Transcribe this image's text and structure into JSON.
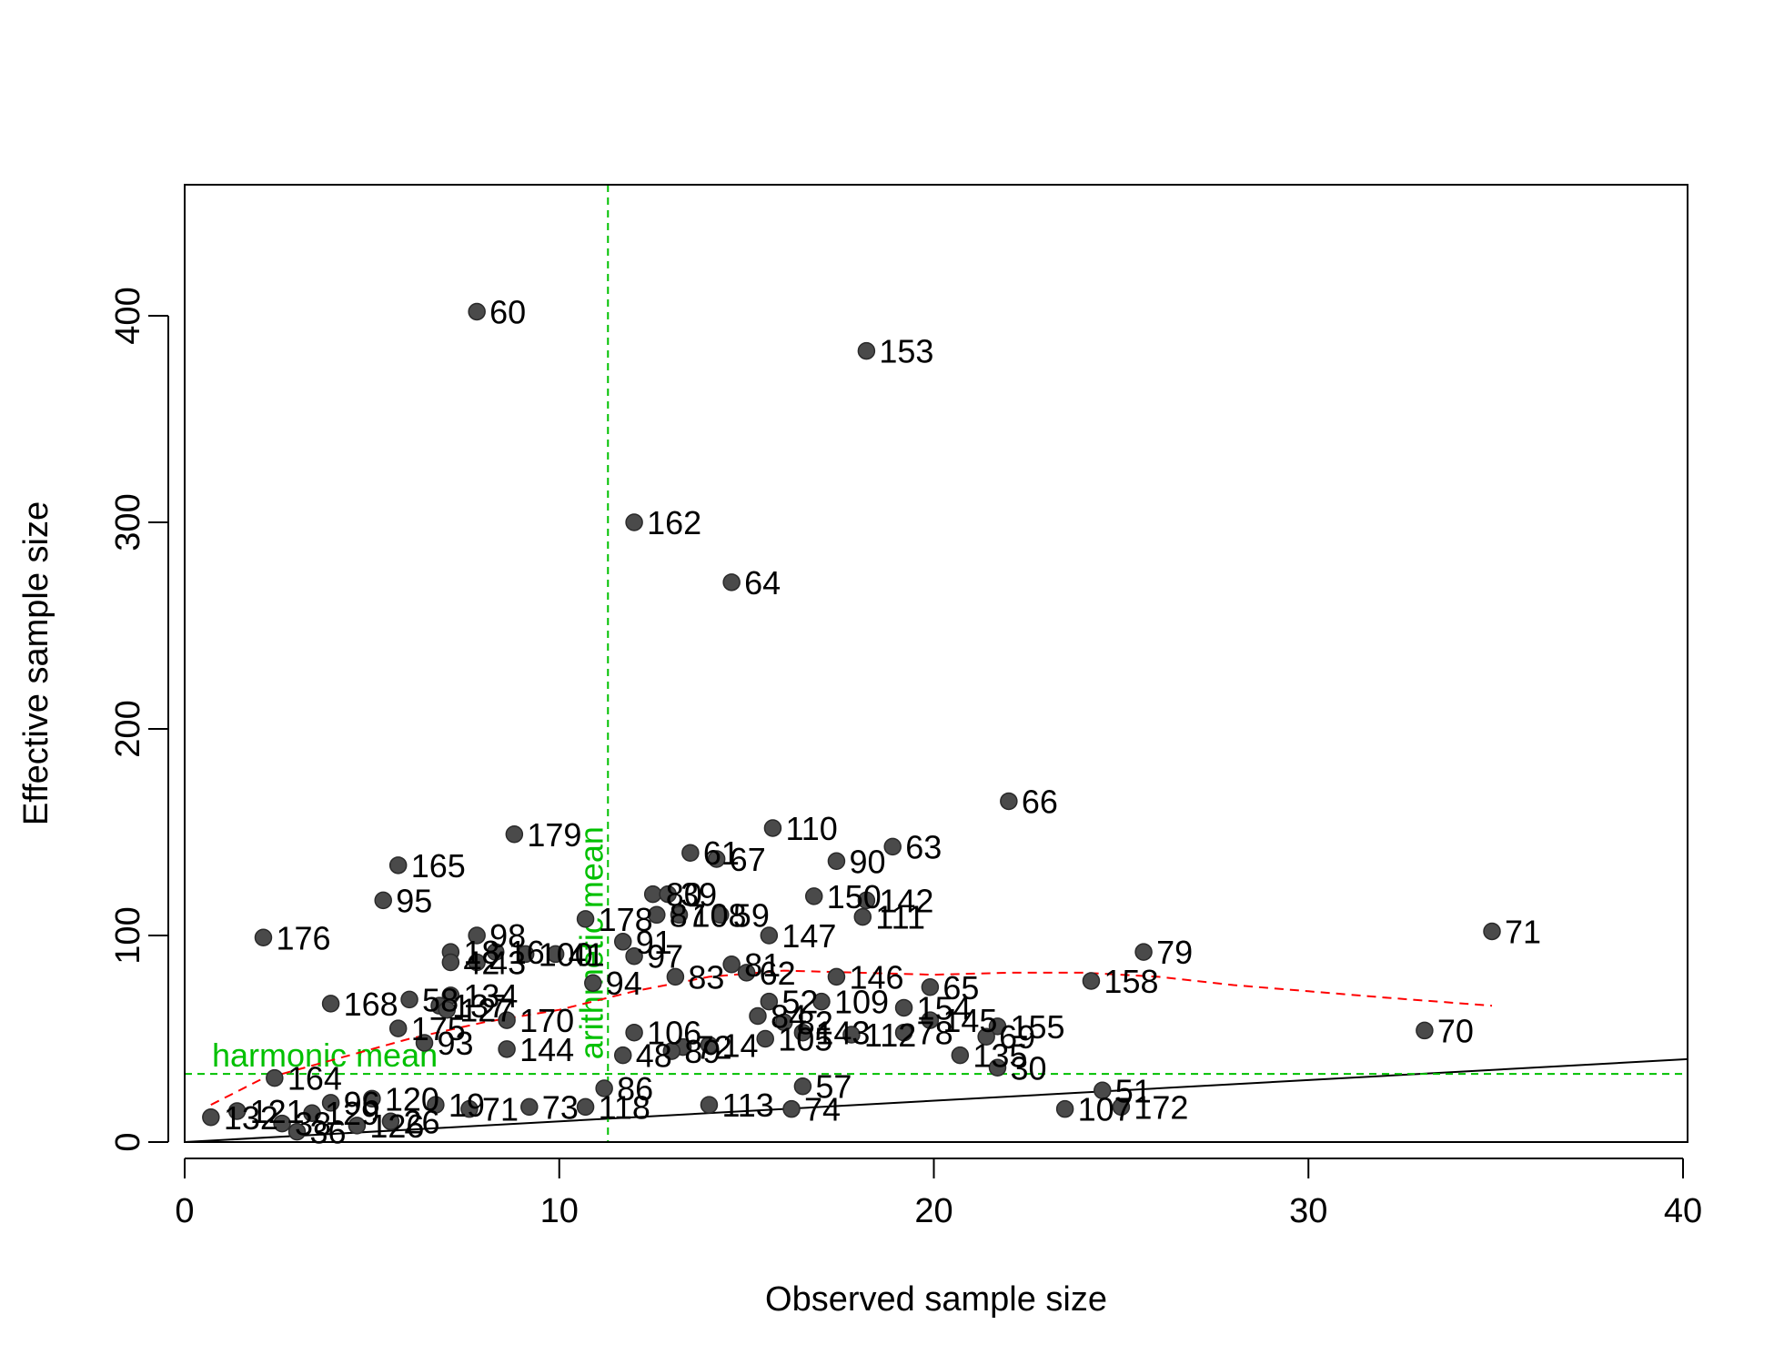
{
  "chart_data": {
    "type": "scatter",
    "xlabel": "Observed sample size",
    "ylabel": "Effective sample size",
    "xlim": [
      0,
      40
    ],
    "ylim": [
      0,
      460
    ],
    "x_ticks": [
      0,
      10,
      20,
      30,
      40
    ],
    "y_ticks": [
      0,
      100,
      200,
      300,
      400
    ],
    "grid": false,
    "legend": "none",
    "colors": {
      "points": "#4a4a4a",
      "trend": "#ff0000",
      "reference": "#00c000",
      "identity": "#000000"
    },
    "reference_lines": {
      "harmonic_mean": {
        "label": "harmonic mean",
        "y": 33
      },
      "arithmetic_mean": {
        "label": "arithmetic mean",
        "x": 11.3
      }
    },
    "identity_line": {
      "slope": 1
    },
    "trend_line": {
      "style": "dashed",
      "x": [
        0.7,
        2,
        4,
        6,
        8,
        10,
        12,
        14,
        16,
        18,
        20,
        22,
        24,
        26,
        28,
        30,
        32,
        34.9
      ],
      "y": [
        18,
        30,
        40,
        50,
        58,
        64,
        73,
        80,
        83,
        82,
        81,
        82,
        82,
        80,
        76,
        73,
        70,
        66
      ]
    },
    "points": [
      {
        "id": "60",
        "x": 7.8,
        "y": 402
      },
      {
        "id": "153",
        "x": 18.2,
        "y": 383
      },
      {
        "id": "162",
        "x": 12.0,
        "y": 300
      },
      {
        "id": "64",
        "x": 14.6,
        "y": 271
      },
      {
        "id": "66",
        "x": 22.0,
        "y": 165
      },
      {
        "id": "179",
        "x": 8.8,
        "y": 149
      },
      {
        "id": "110",
        "x": 15.7,
        "y": 152
      },
      {
        "id": "165",
        "x": 5.7,
        "y": 134
      },
      {
        "id": "63",
        "x": 18.9,
        "y": 143
      },
      {
        "id": "61",
        "x": 13.5,
        "y": 140
      },
      {
        "id": "67",
        "x": 14.2,
        "y": 137
      },
      {
        "id": "90",
        "x": 17.4,
        "y": 136
      },
      {
        "id": "95",
        "x": 5.3,
        "y": 117
      },
      {
        "id": "80",
        "x": 12.5,
        "y": 120
      },
      {
        "id": "39",
        "x": 12.9,
        "y": 120
      },
      {
        "id": "150",
        "x": 16.8,
        "y": 119
      },
      {
        "id": "142",
        "x": 18.2,
        "y": 117
      },
      {
        "id": "178",
        "x": 10.7,
        "y": 108
      },
      {
        "id": "87",
        "x": 12.6,
        "y": 110
      },
      {
        "id": "108",
        "x": 13.2,
        "y": 110
      },
      {
        "id": "59",
        "x": 14.3,
        "y": 110
      },
      {
        "id": "111",
        "x": 18.1,
        "y": 109
      },
      {
        "id": "176",
        "x": 2.1,
        "y": 99
      },
      {
        "id": "71",
        "x": 34.9,
        "y": 102
      },
      {
        "id": "147",
        "x": 15.6,
        "y": 100
      },
      {
        "id": "98",
        "x": 7.8,
        "y": 100
      },
      {
        "id": "91",
        "x": 11.7,
        "y": 97
      },
      {
        "id": "79",
        "x": 25.6,
        "y": 92
      },
      {
        "id": "18",
        "x": 7.1,
        "y": 92
      },
      {
        "id": "16",
        "x": 8.3,
        "y": 92
      },
      {
        "id": "100",
        "x": 9.1,
        "y": 91
      },
      {
        "id": "41",
        "x": 9.9,
        "y": 91
      },
      {
        "id": "97",
        "x": 12.0,
        "y": 90
      },
      {
        "id": "42",
        "x": 7.1,
        "y": 87
      },
      {
        "id": "43",
        "x": 7.8,
        "y": 87
      },
      {
        "id": "81",
        "x": 14.6,
        "y": 86
      },
      {
        "id": "83",
        "x": 13.1,
        "y": 80
      },
      {
        "id": "62",
        "x": 15.0,
        "y": 82
      },
      {
        "id": "146",
        "x": 17.4,
        "y": 80
      },
      {
        "id": "94",
        "x": 10.9,
        "y": 77
      },
      {
        "id": "158",
        "x": 24.2,
        "y": 78
      },
      {
        "id": "65",
        "x": 19.9,
        "y": 75
      },
      {
        "id": "134",
        "x": 7.1,
        "y": 71
      },
      {
        "id": "58",
        "x": 6.0,
        "y": 69
      },
      {
        "id": "168",
        "x": 3.9,
        "y": 67
      },
      {
        "id": "52",
        "x": 15.6,
        "y": 68
      },
      {
        "id": "109",
        "x": 17.0,
        "y": 68
      },
      {
        "id": "137",
        "x": 6.8,
        "y": 66
      },
      {
        "id": "127",
        "x": 7.0,
        "y": 64
      },
      {
        "id": "154",
        "x": 19.2,
        "y": 65
      },
      {
        "id": "84",
        "x": 15.3,
        "y": 61
      },
      {
        "id": "82",
        "x": 16.0,
        "y": 58
      },
      {
        "id": "170",
        "x": 8.6,
        "y": 59
      },
      {
        "id": "145",
        "x": 19.9,
        "y": 59
      },
      {
        "id": "155",
        "x": 21.7,
        "y": 56
      },
      {
        "id": "175",
        "x": 5.7,
        "y": 55
      },
      {
        "id": "70",
        "x": 33.1,
        "y": 54
      },
      {
        "id": "106",
        "x": 12.0,
        "y": 53
      },
      {
        "id": "143",
        "x": 16.5,
        "y": 53
      },
      {
        "id": "112",
        "x": 17.8,
        "y": 52
      },
      {
        "id": "78",
        "x": 19.2,
        "y": 53
      },
      {
        "id": "69",
        "x": 21.4,
        "y": 51
      },
      {
        "id": "105",
        "x": 15.5,
        "y": 50
      },
      {
        "id": "14",
        "x": 14.0,
        "y": 47
      },
      {
        "id": "72",
        "x": 13.3,
        "y": 46
      },
      {
        "id": "135",
        "x": 20.7,
        "y": 42
      },
      {
        "id": "48",
        "x": 11.7,
        "y": 42
      },
      {
        "id": "89",
        "x": 13.0,
        "y": 44
      },
      {
        "id": "30",
        "x": 21.7,
        "y": 36
      },
      {
        "id": "93",
        "x": 6.4,
        "y": 48
      },
      {
        "id": "144",
        "x": 8.6,
        "y": 45
      },
      {
        "id": "164",
        "x": 2.4,
        "y": 31
      },
      {
        "id": "51",
        "x": 24.5,
        "y": 25
      },
      {
        "id": "107",
        "x": 23.5,
        "y": 16
      },
      {
        "id": "172",
        "x": 25.0,
        "y": 17
      },
      {
        "id": "74",
        "x": 16.2,
        "y": 16
      },
      {
        "id": "113",
        "x": 14.0,
        "y": 18
      },
      {
        "id": "57",
        "x": 16.5,
        "y": 27
      },
      {
        "id": "86",
        "x": 11.2,
        "y": 26
      },
      {
        "id": "118",
        "x": 10.7,
        "y": 17
      },
      {
        "id": "73",
        "x": 9.2,
        "y": 17
      },
      {
        "id": "71b",
        "x": 7.6,
        "y": 16
      },
      {
        "id": "19",
        "x": 6.7,
        "y": 18
      },
      {
        "id": "26",
        "x": 5.5,
        "y": 10
      },
      {
        "id": "120",
        "x": 5.0,
        "y": 21
      },
      {
        "id": "96",
        "x": 3.9,
        "y": 19
      },
      {
        "id": "129",
        "x": 3.4,
        "y": 14
      },
      {
        "id": "126",
        "x": 4.6,
        "y": 8
      },
      {
        "id": "132",
        "x": 0.7,
        "y": 12
      },
      {
        "id": "121",
        "x": 1.4,
        "y": 15
      },
      {
        "id": "36",
        "x": 3.0,
        "y": 5
      },
      {
        "id": "38",
        "x": 2.6,
        "y": 9
      }
    ]
  }
}
